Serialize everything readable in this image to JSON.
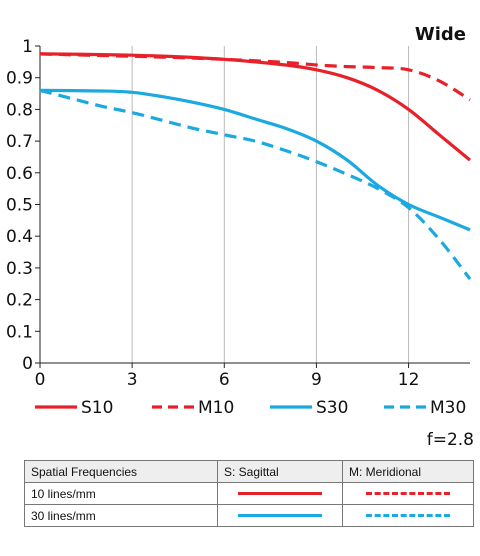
{
  "chart_data": {
    "type": "line",
    "title": "Wide",
    "xlabel": "",
    "ylabel": "",
    "xlim": [
      0,
      14
    ],
    "ylim": [
      0,
      1
    ],
    "xticks": [
      "0",
      "3",
      "6",
      "9",
      "12"
    ],
    "yticks": [
      "0",
      "0.1",
      "0.2",
      "0.3",
      "0.4",
      "0.5",
      "0.6",
      "0.7",
      "0.8",
      "0.9",
      "1"
    ],
    "grid": "vertical",
    "legend_position": "bottom",
    "aperture": "f=2.8",
    "series": [
      {
        "name": "S10",
        "color": "#e8202a",
        "style": "solid",
        "x": [
          0,
          2,
          4,
          6,
          8,
          9,
          10,
          11,
          12,
          13,
          14
        ],
        "y": [
          0.975,
          0.973,
          0.968,
          0.958,
          0.94,
          0.925,
          0.9,
          0.86,
          0.8,
          0.72,
          0.64
        ]
      },
      {
        "name": "M10",
        "color": "#e8202a",
        "style": "dashed",
        "x": [
          0,
          2,
          4,
          6,
          8,
          9,
          10,
          11,
          12,
          13,
          14
        ],
        "y": [
          0.975,
          0.97,
          0.965,
          0.958,
          0.948,
          0.94,
          0.935,
          0.932,
          0.925,
          0.89,
          0.83
        ]
      },
      {
        "name": "S30",
        "color": "#1aa9e0",
        "style": "solid",
        "x": [
          0,
          2,
          3,
          4,
          5,
          6,
          7,
          8,
          9,
          10,
          11,
          12,
          13,
          14
        ],
        "y": [
          0.86,
          0.858,
          0.854,
          0.84,
          0.822,
          0.8,
          0.77,
          0.74,
          0.7,
          0.64,
          0.56,
          0.5,
          0.46,
          0.42
        ]
      },
      {
        "name": "M30",
        "color": "#1aa9e0",
        "style": "dashed",
        "x": [
          0,
          1,
          2,
          3,
          4,
          5,
          6,
          7,
          8,
          9,
          10,
          11,
          12,
          13,
          14
        ],
        "y": [
          0.86,
          0.835,
          0.81,
          0.79,
          0.765,
          0.74,
          0.72,
          0.7,
          0.67,
          0.635,
          0.595,
          0.55,
          0.49,
          0.39,
          0.265
        ]
      }
    ]
  },
  "key_table": {
    "headers": [
      "Spatial Frequencies",
      "S: Sagittal",
      "M: Meridional"
    ],
    "rows": [
      {
        "label": "10 lines/mm",
        "sagittal": "S10",
        "meridional": "M10"
      },
      {
        "label": "30 lines/mm",
        "sagittal": "S30",
        "meridional": "M30"
      }
    ]
  }
}
